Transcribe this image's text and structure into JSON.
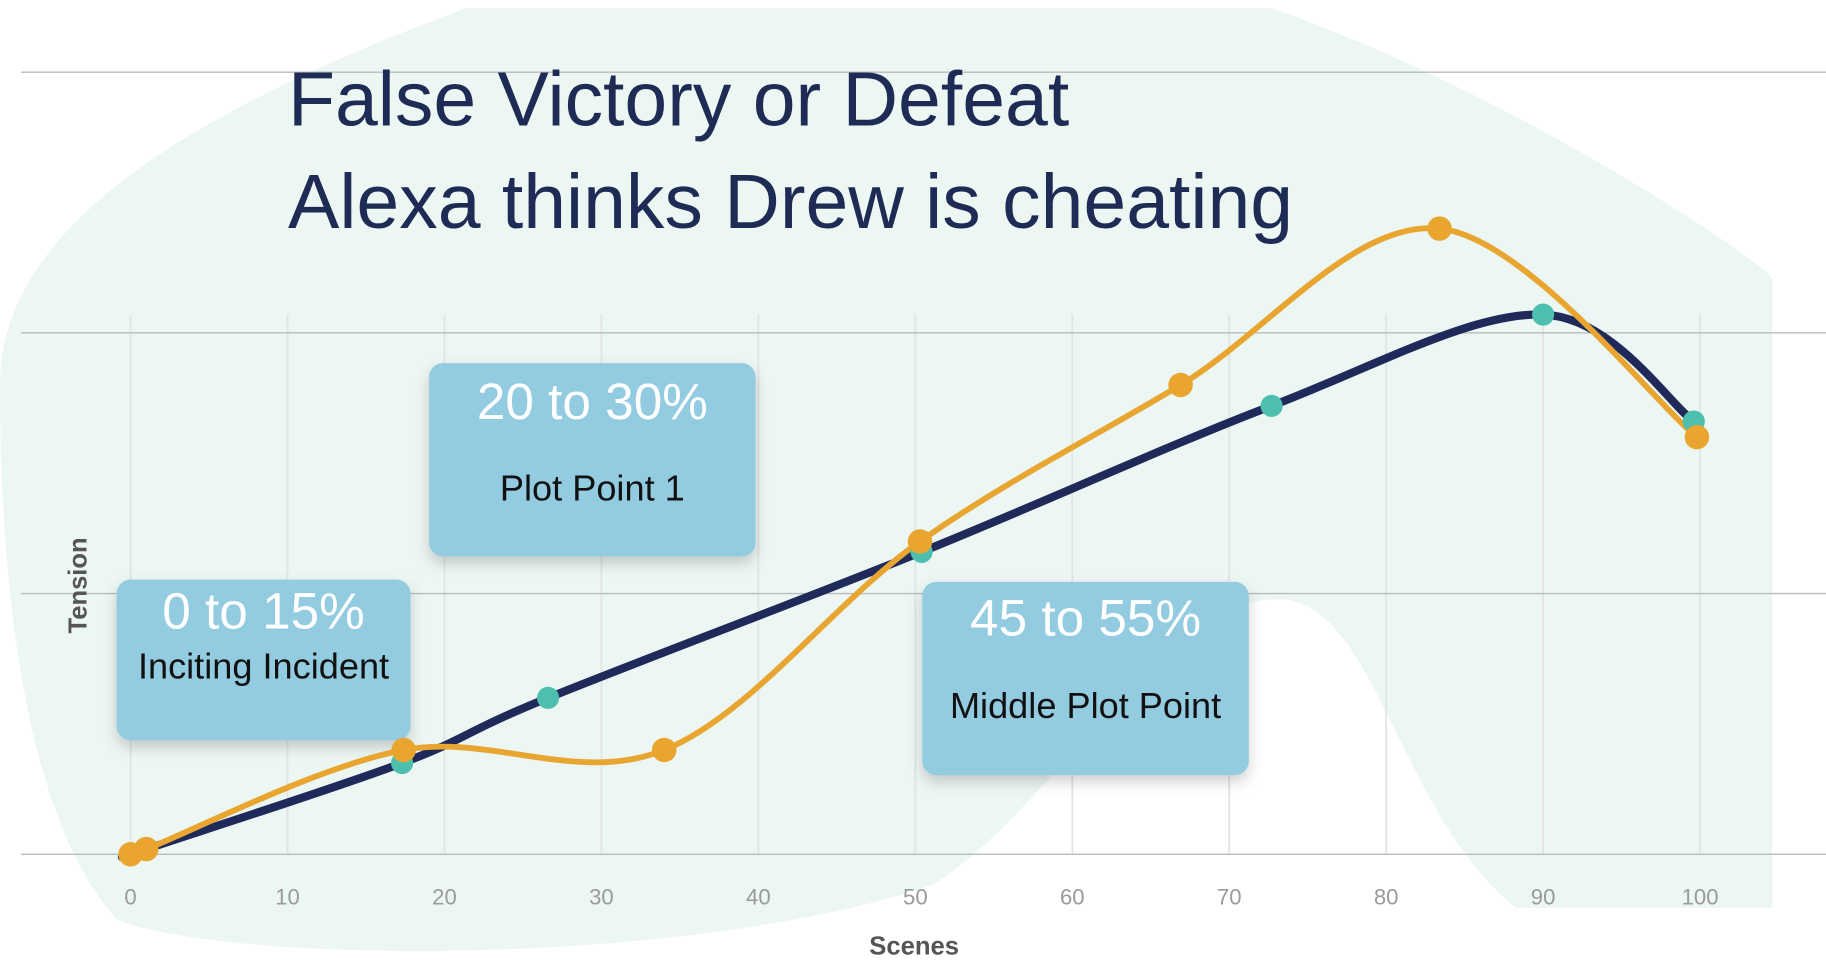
{
  "chart_data": {
    "type": "line",
    "title": "False Victory or Defeat",
    "subtitle": "Alexa thinks Drew is cheating",
    "x_label": "Scenes",
    "y_label": "Tension",
    "xlim": [
      0,
      100
    ],
    "xticks": [
      0,
      10,
      20,
      30,
      40,
      50,
      60,
      70,
      80,
      90,
      100
    ],
    "ylim": [
      0,
      3
    ],
    "yticks": [
      0,
      1,
      2,
      3
    ],
    "grid": true,
    "series": [
      {
        "color": "#1f2a5a",
        "marker_color": "#4dbfae",
        "x": [
          0,
          1,
          17.3,
          26.6,
          50.4,
          72.7,
          90.0,
          99.6
        ],
        "values": [
          0,
          0.02,
          0.35,
          0.6,
          1.16,
          1.72,
          2.07,
          1.66
        ]
      },
      {
        "color": "#e8a530",
        "marker_color": "#eaa52e",
        "x": [
          0,
          1,
          17.4,
          34.0,
          50.3,
          66.9,
          83.4,
          99.8
        ],
        "values": [
          0,
          0.02,
          0.4,
          0.4,
          1.2,
          1.8,
          2.4,
          1.6
        ]
      }
    ],
    "annotations": [
      {
        "title": "20 to 30%",
        "text": "Plot Point 1"
      },
      {
        "title": "0 to 15%",
        "text": "Inciting Incident"
      },
      {
        "title": "45 to 55%",
        "text": "Middle Plot Point"
      }
    ]
  }
}
